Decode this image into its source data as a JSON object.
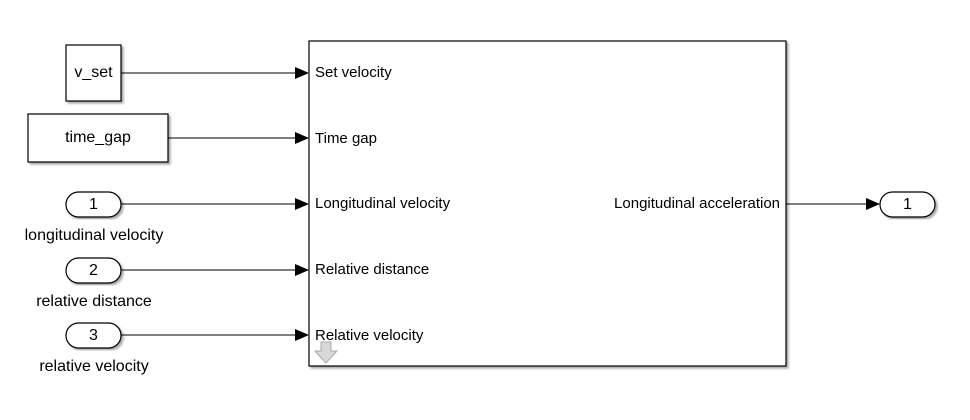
{
  "constants": [
    {
      "id": "v_set",
      "label": "v_set"
    },
    {
      "id": "time_gap",
      "label": "time_gap"
    }
  ],
  "inports": [
    {
      "number": "1",
      "label": "longitudinal velocity"
    },
    {
      "number": "2",
      "label": "relative distance"
    },
    {
      "number": "3",
      "label": "relative velocity"
    }
  ],
  "subsystem": {
    "input_ports": [
      "Set velocity",
      "Time gap",
      "Longitudinal velocity",
      "Relative distance",
      "Relative velocity"
    ],
    "output_ports": [
      "Longitudinal acceleration"
    ]
  },
  "outports": [
    {
      "number": "1"
    }
  ]
}
